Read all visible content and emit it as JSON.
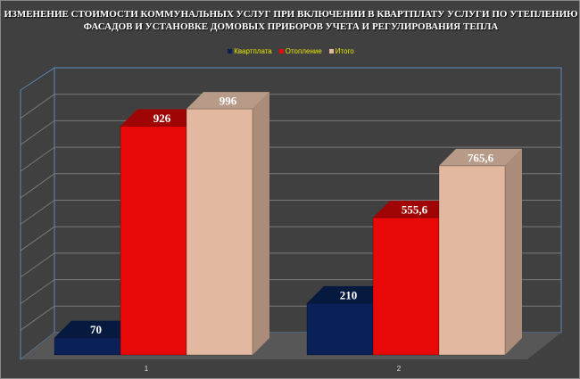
{
  "chart_data": {
    "type": "bar",
    "title": "ИЗМЕНЕНИЕ  СТОИМОСТИ  КОММУНАЛЬНЫХ УСЛУГ ПРИ  ВКЛЮЧЕНИИ В КВАРТПЛАТУ УСЛУГИ ПО УТЕПЛЕНИЮ  ФАСАДОВ И УСТАНОВКЕ  ДОМОВЫХ ПРИБОРОВ УЧЕТА  И РЕГУЛИРОВАНИЯ  ТЕПЛА",
    "categories": [
      "1",
      "2"
    ],
    "series": [
      {
        "name": "Квартплата",
        "values": [
          70,
          210
        ],
        "labels": [
          "70",
          "210"
        ],
        "color": "#0a2157"
      },
      {
        "name": "Отопление",
        "values": [
          926,
          555.6
        ],
        "labels": [
          "926",
          "555,6"
        ],
        "color": "#e80808"
      },
      {
        "name": "Итого",
        "values": [
          996,
          765.6
        ],
        "labels": [
          "996",
          "765,6"
        ],
        "color": "#e2b8a0"
      }
    ],
    "ylim": [
      0,
      1070
    ],
    "grid": true,
    "legend": "top",
    "style": "3d-column"
  }
}
